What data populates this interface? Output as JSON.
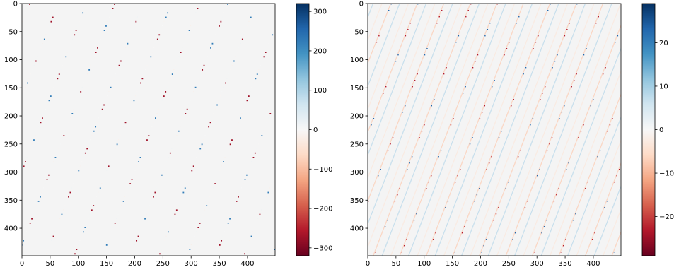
{
  "chart_data": [
    {
      "type": "heatmap",
      "title": "",
      "xlabel": "",
      "ylabel": "",
      "xlim": [
        0,
        449
      ],
      "ylim": [
        449,
        0
      ],
      "x_ticks": [
        "0",
        "50",
        "100",
        "150",
        "200",
        "250",
        "300",
        "350",
        "400"
      ],
      "y_ticks": [
        "0",
        "50",
        "100",
        "150",
        "200",
        "250",
        "300",
        "350",
        "400"
      ],
      "colormap": "RdBu",
      "background_color": "#f4f4f4",
      "pattern": "sparse periodic diagonal stripes running from upper-right to lower-left",
      "colorbar": {
        "range": [
          -320,
          320
        ],
        "ticks": [
          "300",
          "200",
          "100",
          "0",
          "−100",
          "−200",
          "−300"
        ],
        "tick_values": [
          300,
          200,
          100,
          0,
          -100,
          -200,
          -300
        ]
      }
    },
    {
      "type": "heatmap",
      "title": "",
      "xlabel": "",
      "ylabel": "",
      "xlim": [
        0,
        449
      ],
      "ylim": [
        449,
        0
      ],
      "x_ticks": [
        "0",
        "50",
        "100",
        "150",
        "200",
        "250",
        "300",
        "350",
        "400"
      ],
      "y_ticks": [
        "0",
        "50",
        "100",
        "150",
        "200",
        "250",
        "300",
        "350",
        "400"
      ],
      "colormap": "RdBu",
      "background_color": "#f4f4f4",
      "pattern": "dense alternating red and blue diagonal stripes running from upper-right to lower-left",
      "colorbar": {
        "range": [
          -29,
          29
        ],
        "ticks": [
          "20",
          "10",
          "0",
          "−10",
          "−20"
        ],
        "tick_values": [
          20,
          10,
          0,
          -10,
          -20
        ]
      }
    }
  ],
  "colors": {
    "cmap_stops": [
      "#67001f",
      "#b2182b",
      "#d6604d",
      "#f4a582",
      "#fddbc7",
      "#f7f7f7",
      "#d1e5f0",
      "#92c5de",
      "#4393c3",
      "#2166ac",
      "#053061"
    ]
  }
}
